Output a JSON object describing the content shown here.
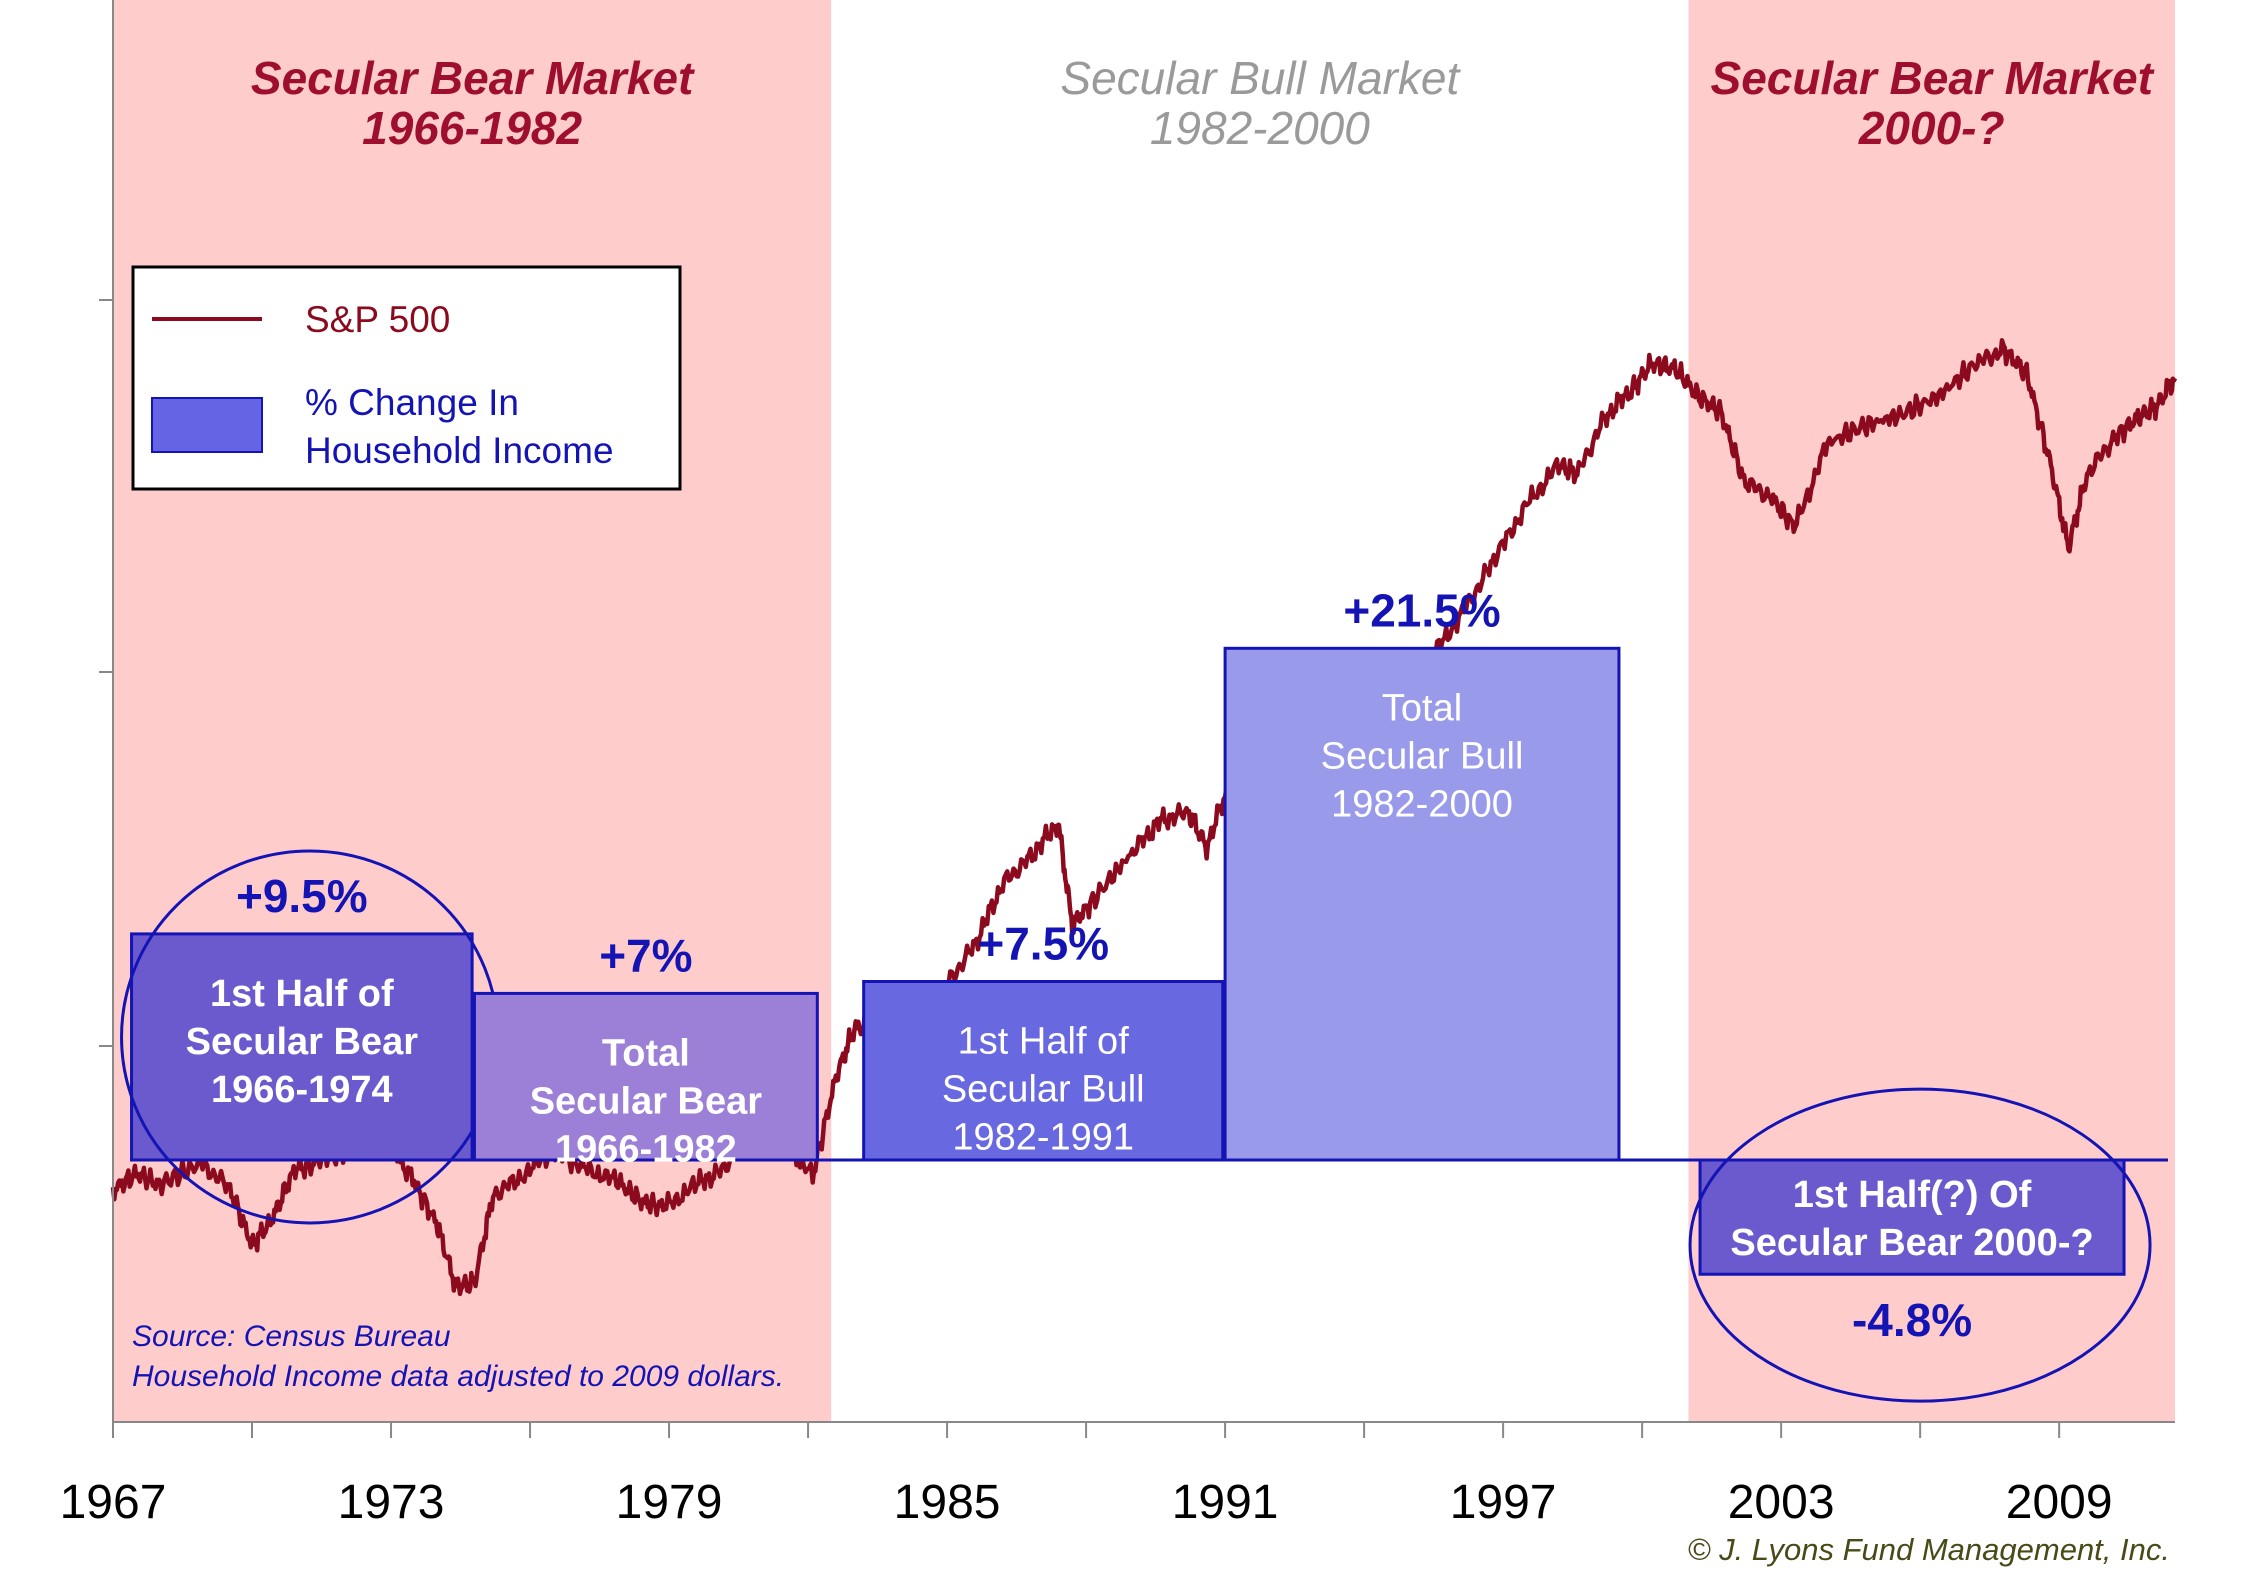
{
  "chart_data": {
    "type": "bar",
    "xlim": [
      1967,
      2011.5
    ],
    "x_ticks": [
      "1967",
      "1973",
      "1979",
      "1985",
      "1991",
      "1997",
      "2003",
      "2009"
    ],
    "eras": [
      {
        "kind": "bear",
        "title": "Secular Bear Market",
        "years": "1966-1982",
        "start": 1967,
        "end": 1982.5
      },
      {
        "kind": "bull",
        "title": "Secular Bull Market",
        "years": "1982-2000",
        "start": 1982.5,
        "end": 2001
      },
      {
        "kind": "bear",
        "title": "Secular Bear Market",
        "years": "2000-?",
        "start": 2001,
        "end": 2011.5
      }
    ],
    "legend": {
      "line_label": "S&P 500",
      "bar_label_line1": "% Change In",
      "bar_label_line2": "Household Income"
    },
    "bars": [
      {
        "label_lines": [
          "1st Half of",
          "Secular Bear",
          "1966-1974"
        ],
        "value": 9.5,
        "value_label": "+9.5%",
        "x_start": 1967.4,
        "x_end": 1974.75,
        "color": "#6a5acd",
        "circled": true,
        "bold": true
      },
      {
        "label_lines": [
          "Total",
          "Secular Bear",
          "1966-1982"
        ],
        "value": 7,
        "value_label": "+7%",
        "x_start": 1974.8,
        "x_end": 1982.2,
        "color": "#9c7fd6",
        "circled": false,
        "bold": true
      },
      {
        "label_lines": [
          "1st Half of",
          "Secular Bull",
          "1982-1991"
        ],
        "value": 7.5,
        "value_label": "+7.5%",
        "x_start": 1983.2,
        "x_end": 1990.95,
        "color": "#6868e0",
        "circled": false,
        "bold": false
      },
      {
        "label_lines": [
          "Total",
          "Secular Bull",
          "1982-2000"
        ],
        "value": 21.5,
        "value_label": "+21.5%",
        "x_start": 1991,
        "x_end": 1999.5,
        "color": "#9a9aea",
        "circled": false,
        "bold": false
      },
      {
        "label_lines": [
          "1st Half(?) Of",
          "Secular Bear 2000-?"
        ],
        "value": -4.8,
        "value_label": "-4.8%",
        "x_start": 2001.25,
        "x_end": 2010.4,
        "color": "#6a5acd",
        "circled": true,
        "bold": true
      }
    ],
    "sp500": {
      "scale": "log",
      "x": [
        1967.0,
        1967.5,
        1968.0,
        1968.9,
        1969.5,
        1970.0,
        1970.4,
        1970.9,
        1971.5,
        1972.2,
        1972.9,
        1973.5,
        1974.0,
        1974.4,
        1974.8,
        1975.2,
        1975.8,
        1976.5,
        1977.2,
        1977.9,
        1978.4,
        1978.9,
        1979.6,
        1980.2,
        1980.8,
        1981.4,
        1982.1,
        1982.6,
        1983.0,
        1983.5,
        1984.0,
        1984.5,
        1985.0,
        1985.6,
        1986.2,
        1986.8,
        1987.4,
        1987.7,
        1988.2,
        1989.0,
        1989.6,
        1990.2,
        1990.6,
        1991.2,
        1991.8,
        1992.5,
        1993.2,
        1994.0,
        1994.8,
        1995.5,
        1996.2,
        1996.8,
        1997.5,
        1998.2,
        1998.6,
        1999.2,
        1999.8,
        2000.2,
        2000.7,
        2001.2,
        2001.7,
        2002.2,
        2002.8,
        2003.3,
        2004.0,
        2004.8,
        2005.6,
        2006.4,
        2007.2,
        2007.8,
        2008.3,
        2008.8,
        2009.2,
        2009.6,
        2010.2,
        2010.7,
        2011.1,
        2011.5
      ],
      "y": [
        120,
        126,
        122,
        130,
        121,
        102,
        109,
        127,
        131,
        136,
        140,
        123,
        108,
        90,
        91,
        118,
        125,
        135,
        128,
        123,
        116,
        114,
        122,
        128,
        150,
        140,
        125,
        168,
        195,
        196,
        188,
        198,
        222,
        250,
        300,
        325,
        360,
        265,
        288,
        330,
        362,
        372,
        335,
        420,
        445,
        465,
        470,
        488,
        512,
        595,
        685,
        790,
        930,
        1050,
        1020,
        1210,
        1320,
        1420,
        1400,
        1290,
        1230,
        1000,
        950,
        870,
        1120,
        1180,
        1220,
        1290,
        1420,
        1480,
        1380,
        1060,
        820,
        1020,
        1140,
        1210,
        1250,
        1360
      ]
    },
    "source_line1": "Source: Census Bureau",
    "source_line2": "Household Income data adjusted to 2009 dollars.",
    "copyright": "© J. Lyons Fund Management, Inc."
  }
}
